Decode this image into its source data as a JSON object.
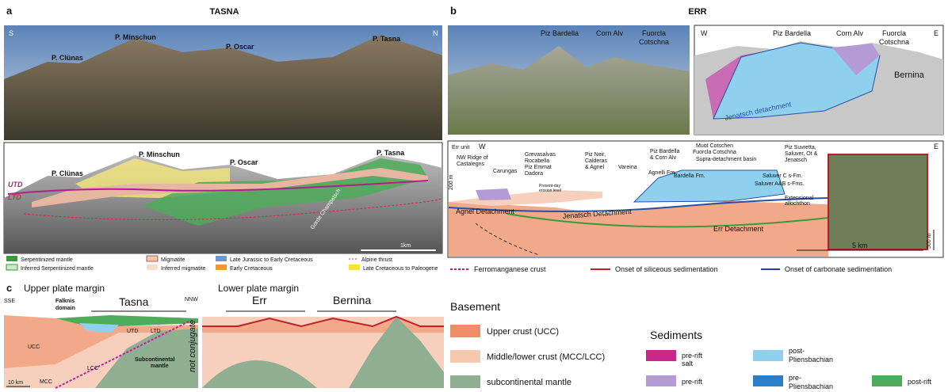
{
  "panel_a": {
    "label": "a",
    "title": "TASNA",
    "photo": {
      "left": "S",
      "right": "N",
      "peaks": [
        "P. Clünas",
        "P. Minschun",
        "P. Oscar",
        "P. Tasna"
      ]
    },
    "interpretation": {
      "left": "S",
      "right": "N",
      "peaks": [
        "P. Clünas",
        "P. Minschun",
        "P. Oscar",
        "P. Tasna"
      ],
      "utd": "UTD",
      "ltd": "LTD",
      "valley": "Gorde Champatsch",
      "scale": "1km"
    },
    "legend": [
      "Serpentinized mantle",
      "Inferred Serpentinized mantle",
      "Migmatite",
      "Inferred migmatite",
      "Late Jurassic to Early Cretaceous",
      "Early Cretaceous",
      "Alpine thrust",
      "Late Cretaceous to Paleogene"
    ]
  },
  "panel_b": {
    "label": "b",
    "title": "ERR",
    "photo": {
      "peaks": [
        [
          "Piz Bardella"
        ],
        [
          "Corn Alv"
        ],
        [
          "Fuorcla",
          "Cotschna"
        ]
      ]
    },
    "interpretation": {
      "left": "W",
      "right": "E",
      "peaks": [
        [
          "Piz Bardella"
        ],
        [
          "Corn Alv"
        ],
        [
          "Fuorcla",
          "Cotschna"
        ]
      ],
      "bernina": "Bernina",
      "detachment": "Jenatsch detachment"
    },
    "section": {
      "unit": "Err unit",
      "left": "W",
      "right": "E",
      "localities": [
        [
          "NW Ridge of",
          "Castalegns"
        ],
        [
          "Carungas"
        ],
        [
          "Grevasalvas",
          "Rocabella",
          "Piz Emmat",
          "Dadora"
        ],
        [
          "Piz Neir,",
          "Calderas",
          "& Agnel"
        ],
        [
          "Vareina"
        ],
        [
          "Piz Bardella",
          "& Corn Alv"
        ],
        [
          "Muot Cotschen",
          "Fuorcla Cotschna"
        ],
        [
          "Piz Suvretta,",
          "Saluver, Ot &",
          "Jenatsch"
        ]
      ],
      "basin": "Supra-detachment basin",
      "vscale": "200 m",
      "erosion": [
        "Present-day",
        "erosion level"
      ],
      "formations": [
        "Agnelli Fm.",
        "Bardella Fm.",
        "Saluver C s-Fm.",
        "Saluver A&B s-Fms."
      ],
      "allochthon": [
        "Extensional",
        "allochthon"
      ],
      "detachments": [
        "Agnel Detachment",
        "Jenatsch Detachment",
        "Err Detachment"
      ],
      "hscale": "5 km",
      "vscale2": "500 m"
    },
    "legend": [
      "Ferromanganese crust",
      "Onset of siliceous sedimentation",
      "Onset of carbonate sedimentation"
    ]
  },
  "panel_c": {
    "label": "c",
    "upper": {
      "title": "Upper plate margin",
      "left": "SSE",
      "right": "NNW",
      "domain": [
        "Falknis",
        "domain"
      ],
      "tasna": "Tasna",
      "utd": "UTD",
      "ltd": "LTD",
      "ucc": "UCC",
      "lcc": "LCC",
      "mcc": "MCC",
      "mantle": [
        "Subcontinental",
        "mantle"
      ],
      "scale": "10 km"
    },
    "lower": {
      "title": "Lower plate margin",
      "err": "Err",
      "bernina": "Bernina"
    },
    "note": "not conjugate",
    "legend": {
      "basement_title": "Basement",
      "basement": [
        "Upper crust (UCC)",
        "Middle/lower crust (MCC/LCC)",
        "subcontinental mantle"
      ],
      "sediments_title": "Sediments",
      "sediments": [
        [
          "pre-rift",
          "salt"
        ],
        [
          "pre-rift"
        ],
        [
          "post-",
          "Pliensbachian"
        ],
        [
          "pre-",
          "Pliensbachian"
        ],
        [
          "post-rift"
        ]
      ]
    }
  }
}
